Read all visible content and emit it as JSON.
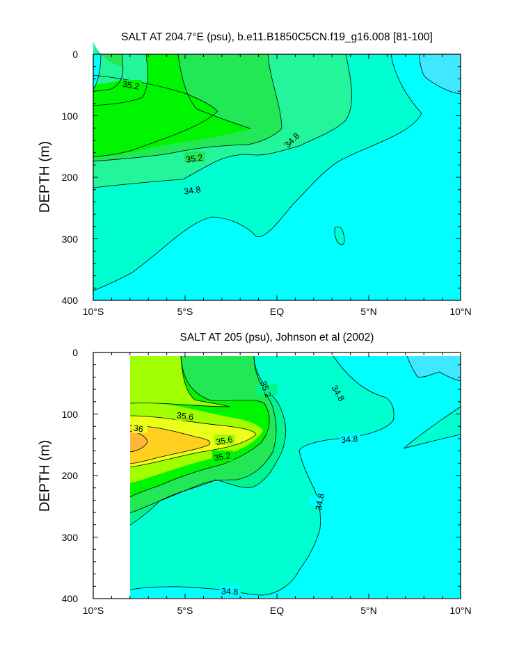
{
  "chart_data": [
    {
      "type": "contour",
      "title": "SALT AT 204.7°E (psu), b.e11.B1850C5CN.f19_g16.008 [81-100]",
      "ylabel": "DEPTH (m)",
      "xlabel": "",
      "x_tick_labels": [
        "10°S",
        "5°S",
        "EQ",
        "5°N",
        "10°N"
      ],
      "y_tick_labels": [
        "0",
        "100",
        "200",
        "300",
        "400"
      ],
      "xlim": [
        -10,
        10
      ],
      "ylim": [
        400,
        0
      ],
      "contour_labels": [
        {
          "text": "35.2",
          "lat": -7.8,
          "depth": 122
        },
        {
          "text": "35.2",
          "lat": -4.4,
          "depth": 174
        },
        {
          "text": "34.8",
          "lat": 0.7,
          "depth": 135
        },
        {
          "text": "34.8",
          "lat": -4.8,
          "depth": 226
        }
      ],
      "fill_colors": {
        "s34_2": "#40e8ff",
        "s34_6": "#00ffff",
        "s34_8": "#00ffd0",
        "s35_0": "#22f59a",
        "s35_2": "#22e855",
        "s35_4": "#00f500"
      }
    },
    {
      "type": "contour",
      "title": "SALT AT 205 (psu), Johnson et al (2002)",
      "ylabel": "DEPTH (m)",
      "xlabel": "",
      "x_tick_labels": [
        "10°S",
        "5°S",
        "EQ",
        "5°N",
        "10°N"
      ],
      "y_tick_labels": [
        "0",
        "100",
        "200",
        "300",
        "400"
      ],
      "xlim": [
        -10,
        10
      ],
      "ylim": [
        400,
        0
      ],
      "data_lat_range": [
        -8,
        10
      ],
      "contour_labels": [
        {
          "text": "35.6",
          "lat": -5.0,
          "depth": 103
        },
        {
          "text": "36",
          "lat": -7.5,
          "depth": 122
        },
        {
          "text": "35.6",
          "lat": -2.9,
          "depth": 139
        },
        {
          "text": "35.2",
          "lat": -3.0,
          "depth": 166
        },
        {
          "text": "35.2",
          "lat": -0.7,
          "depth": 53
        },
        {
          "text": "34.8",
          "lat": 3.3,
          "depth": 60
        },
        {
          "text": "34.8",
          "lat": 3.9,
          "depth": 140
        },
        {
          "text": "34.8",
          "lat": 2.2,
          "depth": 240
        },
        {
          "text": "34.8",
          "lat": -2.6,
          "depth": 325
        }
      ],
      "fill_colors": {
        "s34_4": "#40e8ff",
        "s34_6": "#00ffff",
        "s34_8": "#00ffd0",
        "s35_0": "#00f58f",
        "s35_2": "#22e855",
        "s35_4": "#00f500",
        "s35_6": "#a0ff00",
        "s35_8": "#eaff1a",
        "s36_0": "#ffd020",
        "s36_2": "#ffb43c"
      }
    }
  ]
}
